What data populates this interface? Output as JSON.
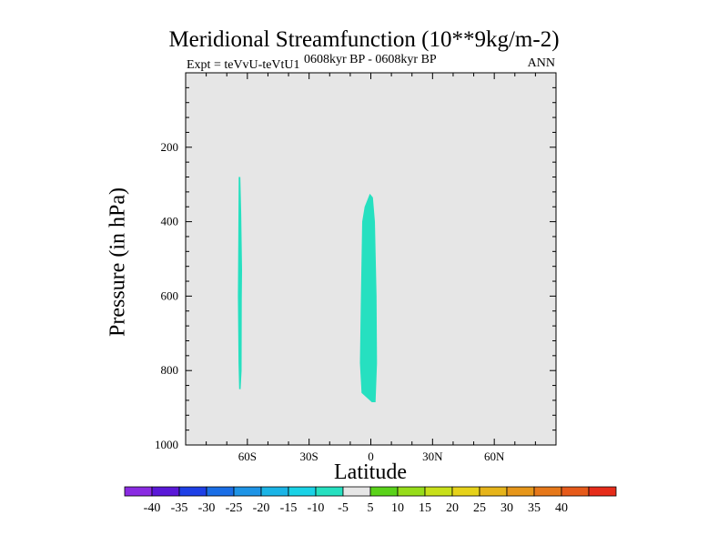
{
  "chart_data": {
    "type": "heatmap",
    "title": "Meridional Streamfunction (10**9kg/m-2)",
    "subtitle_left": "Expt = teVvU-teVtU1",
    "subtitle_center": "0608kyr BP - 0608kyr BP",
    "subtitle_right": "ANN",
    "xlabel": "Latitude",
    "ylabel": "Pressure (in hPa)",
    "xlim": [
      -90,
      90
    ],
    "ylim": [
      1000,
      0
    ],
    "x_ticks": [
      {
        "value": -60,
        "label": "60S"
      },
      {
        "value": -30,
        "label": "30S"
      },
      {
        "value": 0,
        "label": "0"
      },
      {
        "value": 30,
        "label": "30N"
      },
      {
        "value": 60,
        "label": "60N"
      }
    ],
    "y_ticks": [
      {
        "value": 200,
        "label": "200"
      },
      {
        "value": 400,
        "label": "400"
      },
      {
        "value": 600,
        "label": "600"
      },
      {
        "value": 800,
        "label": "800"
      },
      {
        "value": 1000,
        "label": "1000"
      }
    ],
    "background_color": "#e6e6e6",
    "regions": [
      {
        "interval": "-10 to -5",
        "color": "#26e0c0",
        "polygon": [
          [
            -64.2,
            280
          ],
          [
            -63.4,
            280
          ],
          [
            -63.0,
            380
          ],
          [
            -62.6,
            530
          ],
          [
            -62.7,
            610
          ],
          [
            -62.8,
            800
          ],
          [
            -63.3,
            850
          ],
          [
            -64.0,
            850
          ],
          [
            -64.3,
            780
          ],
          [
            -64.6,
            600
          ],
          [
            -64.5,
            500
          ]
        ]
      },
      {
        "interval": "-10 to -5",
        "color": "#26e0c0",
        "polygon": [
          [
            -0.5,
            325
          ],
          [
            1.0,
            335
          ],
          [
            2.0,
            400
          ],
          [
            2.8,
            600
          ],
          [
            3.0,
            780
          ],
          [
            2.3,
            885
          ],
          [
            0.5,
            885
          ],
          [
            -4.5,
            860
          ],
          [
            -5.3,
            780
          ],
          [
            -4.8,
            600
          ],
          [
            -4.2,
            400
          ],
          [
            -3.0,
            360
          ]
        ]
      }
    ],
    "colorbar": {
      "colors": [
        "#8a2be2",
        "#5a18d8",
        "#1e40e6",
        "#1a6ee6",
        "#1e94e6",
        "#1ab4e6",
        "#1ad2e6",
        "#26e0c0",
        "#e6e6e6",
        "#5ad21a",
        "#96dc1a",
        "#c8e01a",
        "#e6d21a",
        "#e6b41a",
        "#e6961a",
        "#e6781a",
        "#e65a1a",
        "#e62c1a"
      ],
      "labels": [
        "-40",
        "-35",
        "-30",
        "-25",
        "-20",
        "-15",
        "-10",
        "-5",
        "5",
        "10",
        "15",
        "20",
        "25",
        "30",
        "35",
        "40"
      ]
    }
  }
}
